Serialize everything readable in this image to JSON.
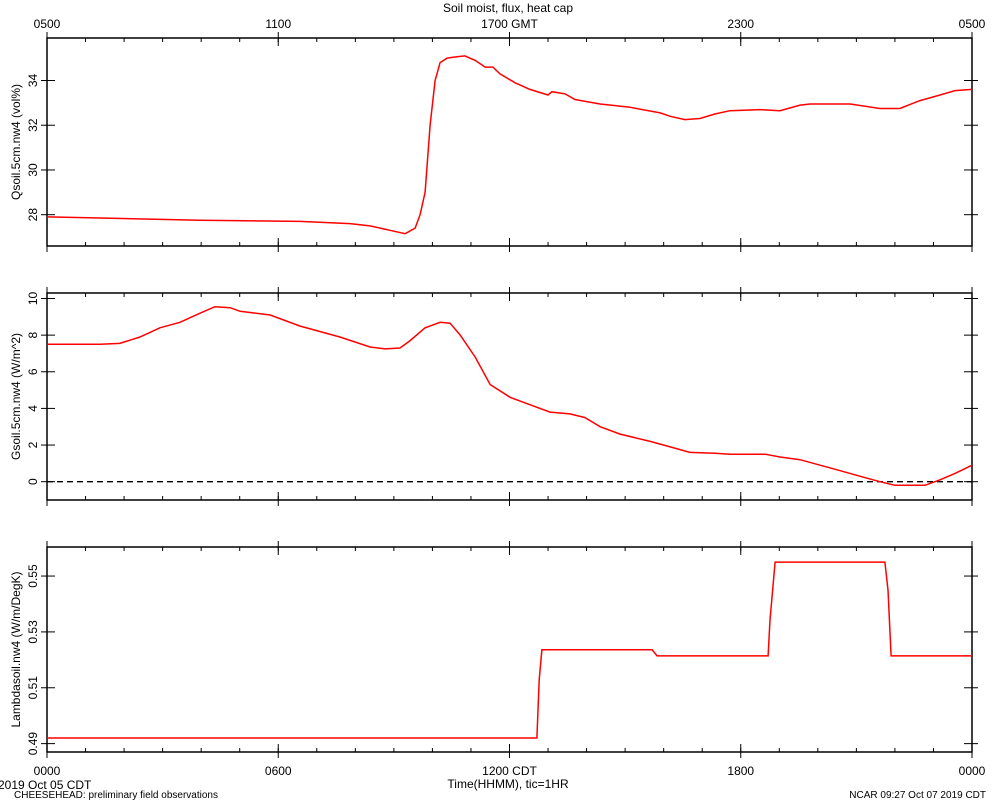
{
  "chart_data": [
    {
      "type": "line",
      "title": "Soil moist, flux, heat cap",
      "ylabel": "Qsoil.5cm.nw4 (vol%)",
      "color": "#ff0000",
      "xlim": [
        0,
        24
      ],
      "ylim": [
        26.6,
        35.9
      ],
      "yticks": [
        28,
        30,
        32,
        34
      ],
      "x2ticks": [
        {
          "value": 0,
          "label": "0500"
        },
        {
          "value": 6,
          "label": "1100"
        },
        {
          "value": 12,
          "label": "1700 GMT"
        },
        {
          "value": 18,
          "label": "2300"
        },
        {
          "value": 24,
          "label": "0500"
        }
      ],
      "xminorticks": [
        0,
        1,
        2,
        3,
        4,
        5,
        6,
        7,
        8,
        9,
        10,
        11,
        12,
        13,
        14,
        15,
        16,
        17,
        18,
        19,
        20,
        21,
        22,
        23,
        24
      ],
      "x": [
        0,
        1.38,
        3.97,
        6.56,
        7.86,
        8.38,
        8.9,
        9.29,
        9.55,
        9.68,
        9.81,
        9.94,
        10.07,
        10.2,
        10.38,
        10.58,
        10.84,
        11.11,
        11.37,
        11.57,
        11.75,
        12.14,
        12.53,
        13.0,
        13.1,
        13.44,
        13.7,
        14.35,
        15.13,
        15.91,
        16.17,
        16.55,
        16.94,
        17.33,
        17.72,
        18.5,
        19.02,
        19.54,
        19.8,
        20.84,
        21.61,
        22.13,
        22.65,
        23.17,
        23.56,
        24
      ],
      "values": [
        27.9,
        27.85,
        27.75,
        27.7,
        27.6,
        27.5,
        27.3,
        27.15,
        27.4,
        28.0,
        29.0,
        32.0,
        34.0,
        34.8,
        35.0,
        35.05,
        35.1,
        34.9,
        34.6,
        34.6,
        34.3,
        33.9,
        33.6,
        33.35,
        33.5,
        33.4,
        33.15,
        32.95,
        32.8,
        32.55,
        32.4,
        32.25,
        32.3,
        32.5,
        32.65,
        32.7,
        32.65,
        32.9,
        32.95,
        32.95,
        32.75,
        32.75,
        33.1,
        33.35,
        33.55,
        33.6
      ]
    },
    {
      "type": "line",
      "ylabel": "Gsoil.5cm.nw4 (W/m^2)",
      "color": "#ff0000",
      "xlim": [
        0,
        24
      ],
      "ylim": [
        -1,
        10.3
      ],
      "yticks": [
        0,
        2,
        4,
        6,
        8,
        10
      ],
      "hline": 0,
      "x": [
        0,
        1.38,
        1.89,
        2.41,
        2.93,
        3.45,
        3.97,
        4.36,
        4.75,
        5.01,
        5.79,
        6.56,
        7.6,
        8.38,
        8.77,
        9.16,
        9.42,
        9.81,
        10.2,
        10.46,
        10.72,
        11.11,
        11.5,
        12.02,
        12.53,
        13.05,
        13.57,
        13.96,
        14.35,
        14.87,
        15.65,
        16.17,
        16.68,
        17.33,
        17.72,
        18.63,
        19.02,
        19.54,
        20.06,
        20.58,
        21.09,
        21.61,
        22.0,
        22.78,
        23.17,
        23.56,
        24
      ],
      "values": [
        7.5,
        7.5,
        7.55,
        7.9,
        8.4,
        8.7,
        9.2,
        9.55,
        9.5,
        9.3,
        9.1,
        8.5,
        7.9,
        7.35,
        7.25,
        7.3,
        7.7,
        8.4,
        8.7,
        8.65,
        8.0,
        6.8,
        5.3,
        4.6,
        4.2,
        3.8,
        3.7,
        3.5,
        3.0,
        2.6,
        2.2,
        1.9,
        1.6,
        1.55,
        1.5,
        1.5,
        1.35,
        1.2,
        0.9,
        0.6,
        0.3,
        0.0,
        -0.2,
        -0.2,
        0.1,
        0.45,
        0.9
      ]
    },
    {
      "type": "line",
      "ylabel": "Lambdasoil.nw4 (W/m/DegK)",
      "xlabel": "Time(HHMM), tic=1HR",
      "color": "#ff0000",
      "xlim": [
        0,
        24
      ],
      "ylim": [
        0.487,
        0.5604
      ],
      "yticks": [
        0.49,
        0.51,
        0.53,
        0.55
      ],
      "xticks": [
        {
          "value": 0,
          "label": "0000"
        },
        {
          "value": 6,
          "label": "0600"
        },
        {
          "value": 12,
          "label": "1200 CDT"
        },
        {
          "value": 18,
          "label": "1800"
        },
        {
          "value": 24,
          "label": "0000"
        }
      ],
      "x": [
        0,
        12.71,
        12.77,
        12.84,
        15.7,
        15.83,
        18.71,
        18.76,
        18.89,
        21.74,
        21.82,
        21.9,
        24
      ],
      "values": [
        0.492,
        0.492,
        0.5129,
        0.5236,
        0.5236,
        0.5214,
        0.5214,
        0.5343,
        0.555,
        0.555,
        0.545,
        0.5214,
        0.5214
      ]
    }
  ],
  "footer": {
    "date": "2019 Oct 05 CDT",
    "project": "CHEESEHEAD: preliminary field observations",
    "stamp": "NCAR 09:27 Oct 07 2019 CDT"
  }
}
